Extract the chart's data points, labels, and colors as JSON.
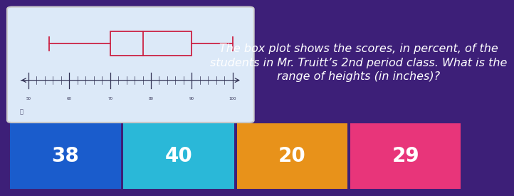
{
  "bg_color": "#3d1f78",
  "top_left_box_color": "#dce9f8",
  "top_right_bg": "#3d1f78",
  "question_color": "#ffffff",
  "boxplot": {
    "whisker_min": 55,
    "q1": 70,
    "median": 78,
    "q3": 90,
    "whisker_max": 100,
    "axis_min": 50,
    "axis_max": 100,
    "color": "#cc2244"
  },
  "answers": [
    {
      "value": "38",
      "color": "#1a5ccc"
    },
    {
      "value": "40",
      "color": "#2ab8d8"
    },
    {
      "value": "20",
      "color": "#e8921a"
    },
    {
      "value": "29",
      "color": "#e8357a"
    }
  ],
  "answer_text_color": "#ffffff",
  "answer_fontsize": 20,
  "question_fontsize": 11.5,
  "question_text": "The box plot shows the scores, in percent, of the\nstudents in Mr. Truitt’s 2nd period class. What is the\nrange of heights (in inches)?"
}
